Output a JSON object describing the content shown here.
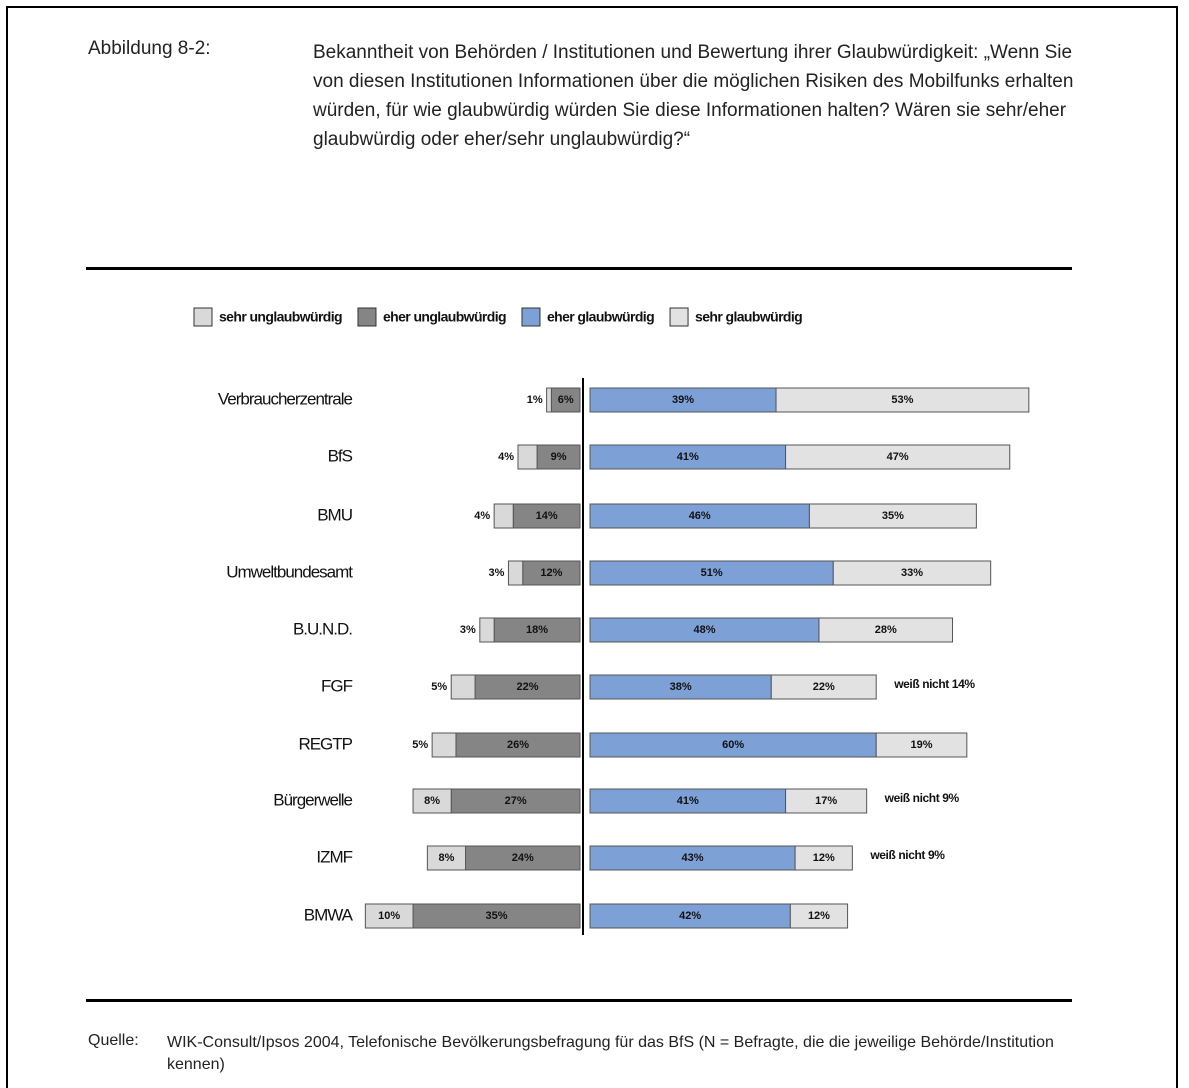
{
  "figure": {
    "label": "Abbildung 8-2:",
    "caption": "Bekanntheit von Behörden / Institutionen und Bewertung ihrer Glaubwürdigkeit: „Wenn Sie von diesen Institutionen Informationen über die möglichen Risiken des Mobilfunks erhalten würden, für wie glaubwürdig würden Sie diese Informationen halten? Wären sie sehr/eher glaubwürdig oder eher/sehr unglaubwürdig?“"
  },
  "chart_data": {
    "type": "diverging_bar",
    "categories": [
      "Verbraucherzentrale",
      "BfS",
      "BMU",
      "Umweltbundesamt",
      "B.U.N.D.",
      "FGF",
      "REGTP",
      "Bürgerwelle",
      "IZMF",
      "BMWA"
    ],
    "series": [
      {
        "name": "sehr unglaubwürdig",
        "color": "#d9d9d9",
        "values": [
          1,
          4,
          4,
          3,
          3,
          5,
          5,
          8,
          8,
          10
        ],
        "value_labels": [
          "1%",
          "4%",
          "4%",
          "3%",
          "3%",
          "5%",
          "5%",
          "8%",
          "8%",
          "10%"
        ]
      },
      {
        "name": "eher unglaubwürdig",
        "color": "#858585",
        "values": [
          6,
          9,
          14,
          12,
          18,
          22,
          26,
          27,
          24,
          35
        ],
        "value_labels": [
          "6%",
          "9%",
          "14%",
          "12%",
          "18%",
          "22%",
          "26%",
          "27%",
          "24%",
          "35%"
        ]
      },
      {
        "name": "eher glaubwürdig",
        "color": "#7da0d6",
        "values": [
          39,
          41,
          46,
          51,
          48,
          38,
          60,
          41,
          43,
          42
        ],
        "value_labels": [
          "39%",
          "41%",
          "46%",
          "51%",
          "48%",
          "38%",
          "60%",
          "41%",
          "43%",
          "42%"
        ]
      },
      {
        "name": "sehr glaubwürdig",
        "color": "#e2e2e2",
        "values": [
          53,
          47,
          35,
          33,
          28,
          22,
          19,
          17,
          12,
          12
        ],
        "value_labels": [
          "53%",
          "47%",
          "35%",
          "33%",
          "28%",
          "22%",
          "19%",
          "17%",
          "12%",
          "12%"
        ]
      }
    ],
    "annotations": [
      {
        "category": "FGF",
        "text": "weiß nicht 14%"
      },
      {
        "category": "Bürgerwelle",
        "text": "weiß nicht 9%"
      },
      {
        "category": "IZMF",
        "text": "weiß nicht 9%"
      }
    ]
  },
  "source": {
    "label": "Quelle:",
    "text": "WIK-Consult/Ipsos 2004, Telefonische Bevölkerungsbefragung für das BfS (N = Befragte, die die jeweilige Behörde/Institution kennen)"
  }
}
